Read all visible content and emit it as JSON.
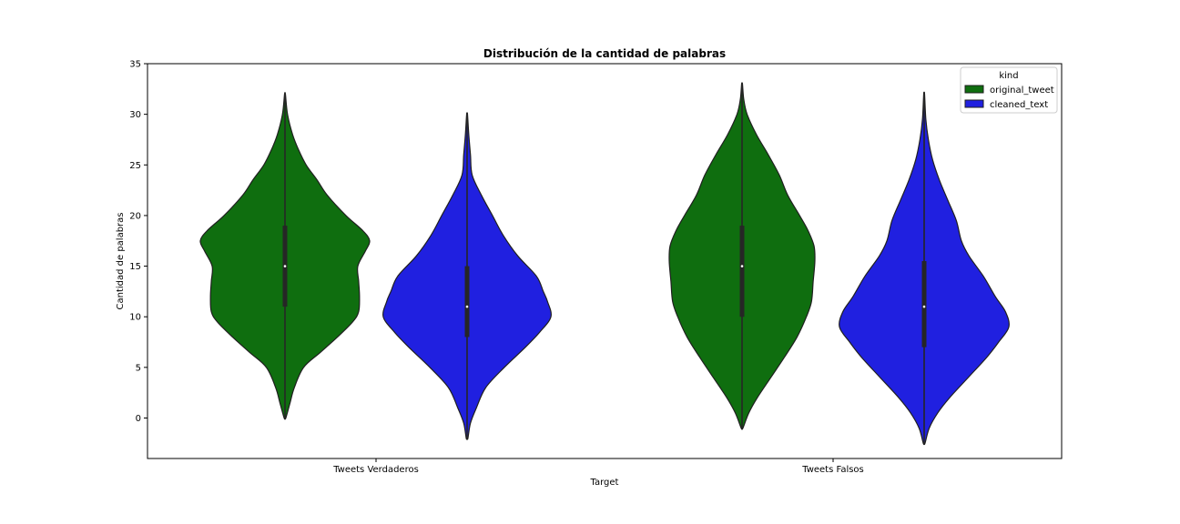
{
  "chart_data": {
    "type": "violin",
    "title": "Distribución de la cantidad de palabras",
    "xlabel": "Target",
    "ylabel": "Cantidad de palabras",
    "ylim": [
      -4,
      35
    ],
    "yticks": [
      0,
      5,
      10,
      15,
      20,
      25,
      30,
      35
    ],
    "categories": [
      "Tweets Verdaderos",
      "Tweets Falsos"
    ],
    "grid": false,
    "legend": {
      "title": "kind",
      "placement": "top-right",
      "entries": [
        "original_tweet",
        "cleaned_text"
      ]
    },
    "series": [
      {
        "name": "original_tweet",
        "color": "#0f6e0f",
        "violins": [
          {
            "min": 0,
            "max": 32,
            "q1": 11,
            "median": 15,
            "q3": 19,
            "profile": [
              [
                0,
                0.01
              ],
              [
                1.5,
                0.06
              ],
              [
                3,
                0.11
              ],
              [
                5,
                0.22
              ],
              [
                6.5,
                0.42
              ],
              [
                8,
                0.62
              ],
              [
                9.5,
                0.8
              ],
              [
                10.5,
                0.87
              ],
              [
                12,
                0.88
              ],
              [
                13.5,
                0.87
              ],
              [
                15,
                0.86
              ],
              [
                16.5,
                0.95
              ],
              [
                17.5,
                1.0
              ],
              [
                18.5,
                0.92
              ],
              [
                20,
                0.72
              ],
              [
                22,
                0.5
              ],
              [
                23.5,
                0.38
              ],
              [
                25,
                0.25
              ],
              [
                26.5,
                0.16
              ],
              [
                28,
                0.09
              ],
              [
                30,
                0.03
              ],
              [
                32,
                0.005
              ]
            ]
          },
          {
            "min": -1,
            "max": 33,
            "q1": 10,
            "median": 15,
            "q3": 19,
            "profile": [
              [
                -1,
                0.01
              ],
              [
                0.5,
                0.08
              ],
              [
                2,
                0.18
              ],
              [
                4,
                0.34
              ],
              [
                6,
                0.5
              ],
              [
                8,
                0.65
              ],
              [
                10,
                0.76
              ],
              [
                11.5,
                0.82
              ],
              [
                13.5,
                0.84
              ],
              [
                15.5,
                0.86
              ],
              [
                17,
                0.85
              ],
              [
                18.5,
                0.78
              ],
              [
                20,
                0.68
              ],
              [
                22,
                0.54
              ],
              [
                24,
                0.44
              ],
              [
                26,
                0.31
              ],
              [
                28,
                0.17
              ],
              [
                30,
                0.06
              ],
              [
                31.5,
                0.02
              ],
              [
                33,
                0.005
              ]
            ]
          }
        ]
      },
      {
        "name": "cleaned_text",
        "color": "#2020e0",
        "violins": [
          {
            "min": -2,
            "max": 30,
            "q1": 8,
            "median": 11,
            "q3": 15,
            "profile": [
              [
                -2,
                0.01
              ],
              [
                -0.5,
                0.04
              ],
              [
                1,
                0.11
              ],
              [
                3,
                0.22
              ],
              [
                5,
                0.44
              ],
              [
                7,
                0.69
              ],
              [
                8.5,
                0.86
              ],
              [
                10,
                0.99
              ],
              [
                11.5,
                0.95
              ],
              [
                12.5,
                0.9
              ],
              [
                14,
                0.82
              ],
              [
                16,
                0.6
              ],
              [
                18,
                0.43
              ],
              [
                20,
                0.3
              ],
              [
                22,
                0.17
              ],
              [
                24,
                0.06
              ],
              [
                26,
                0.04
              ],
              [
                28,
                0.02
              ],
              [
                30,
                0.005
              ]
            ]
          },
          {
            "min": -2.5,
            "max": 32,
            "q1": 7,
            "median": 11,
            "q3": 15.5,
            "profile": [
              [
                -2.5,
                0.01
              ],
              [
                -1,
                0.06
              ],
              [
                0.5,
                0.16
              ],
              [
                2,
                0.3
              ],
              [
                4,
                0.52
              ],
              [
                6,
                0.74
              ],
              [
                7.5,
                0.88
              ],
              [
                9,
                1.0
              ],
              [
                10.5,
                0.96
              ],
              [
                12,
                0.84
              ],
              [
                14,
                0.7
              ],
              [
                16,
                0.53
              ],
              [
                17.5,
                0.44
              ],
              [
                19.5,
                0.38
              ],
              [
                21.5,
                0.28
              ],
              [
                23.5,
                0.18
              ],
              [
                25.5,
                0.1
              ],
              [
                27.5,
                0.05
              ],
              [
                29.5,
                0.02
              ],
              [
                32,
                0.005
              ]
            ]
          }
        ]
      }
    ]
  }
}
